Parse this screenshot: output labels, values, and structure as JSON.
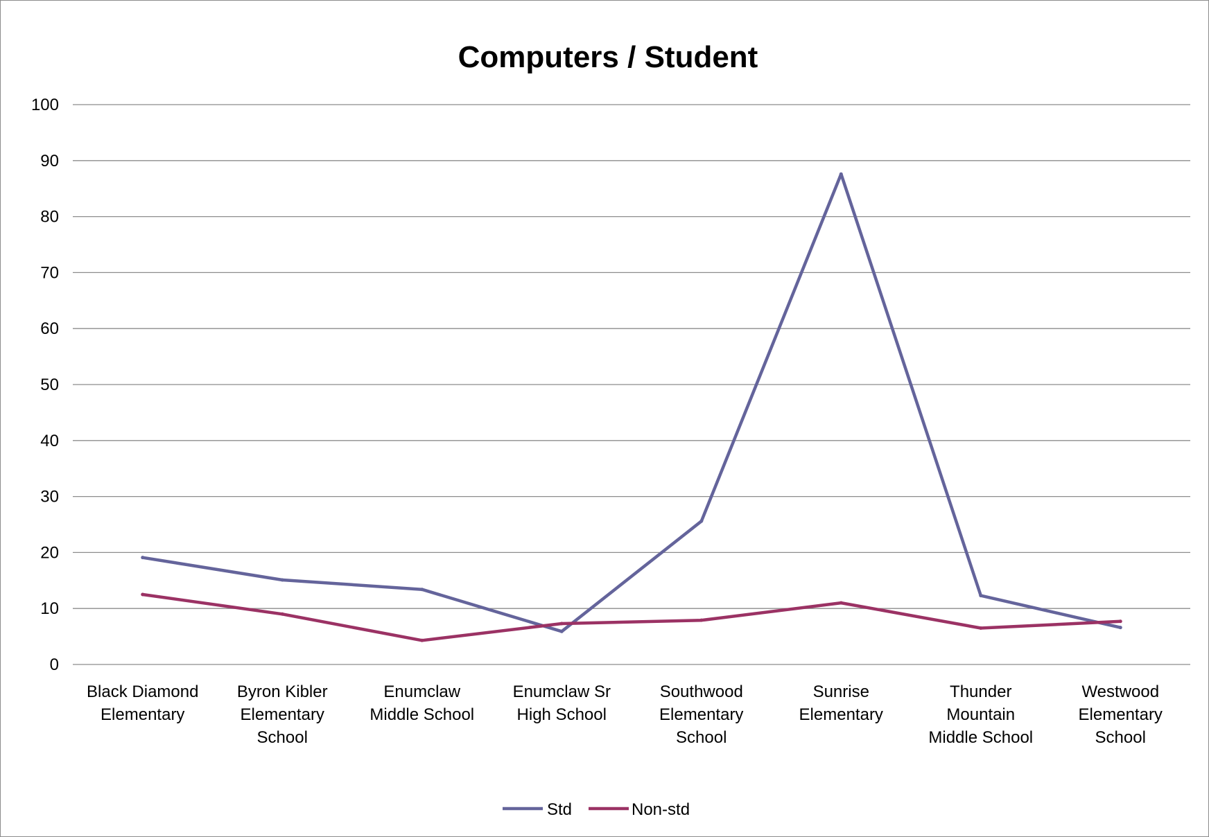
{
  "chart_data": {
    "type": "line",
    "title": "Computers / Student",
    "xlabel": "",
    "ylabel": "",
    "ylim": [
      0,
      100
    ],
    "yticks": [
      "0",
      "10",
      "20",
      "30",
      "40",
      "50",
      "60",
      "70",
      "80",
      "90",
      "100"
    ],
    "categories": [
      [
        "Black Diamond",
        "Elementary"
      ],
      [
        "Byron Kibler",
        "Elementary",
        "School"
      ],
      [
        "Enumclaw",
        "Middle School"
      ],
      [
        "Enumclaw Sr",
        "High School"
      ],
      [
        "Southwood",
        "Elementary",
        "School"
      ],
      [
        "Sunrise",
        "Elementary"
      ],
      [
        "Thunder",
        "Mountain",
        "Middle School"
      ],
      [
        "Westwood",
        "Elementary",
        "School"
      ]
    ],
    "series": [
      {
        "name": "Std",
        "color": "#64649b",
        "values": [
          19.1,
          15.1,
          13.4,
          5.9,
          25.6,
          87.6,
          12.3,
          6.6
        ]
      },
      {
        "name": "Non-std",
        "color": "#9b3264",
        "values": [
          12.5,
          9.0,
          4.3,
          7.3,
          7.9,
          11.0,
          6.5,
          7.7
        ]
      }
    ],
    "grid": true,
    "legend_position": "bottom"
  }
}
